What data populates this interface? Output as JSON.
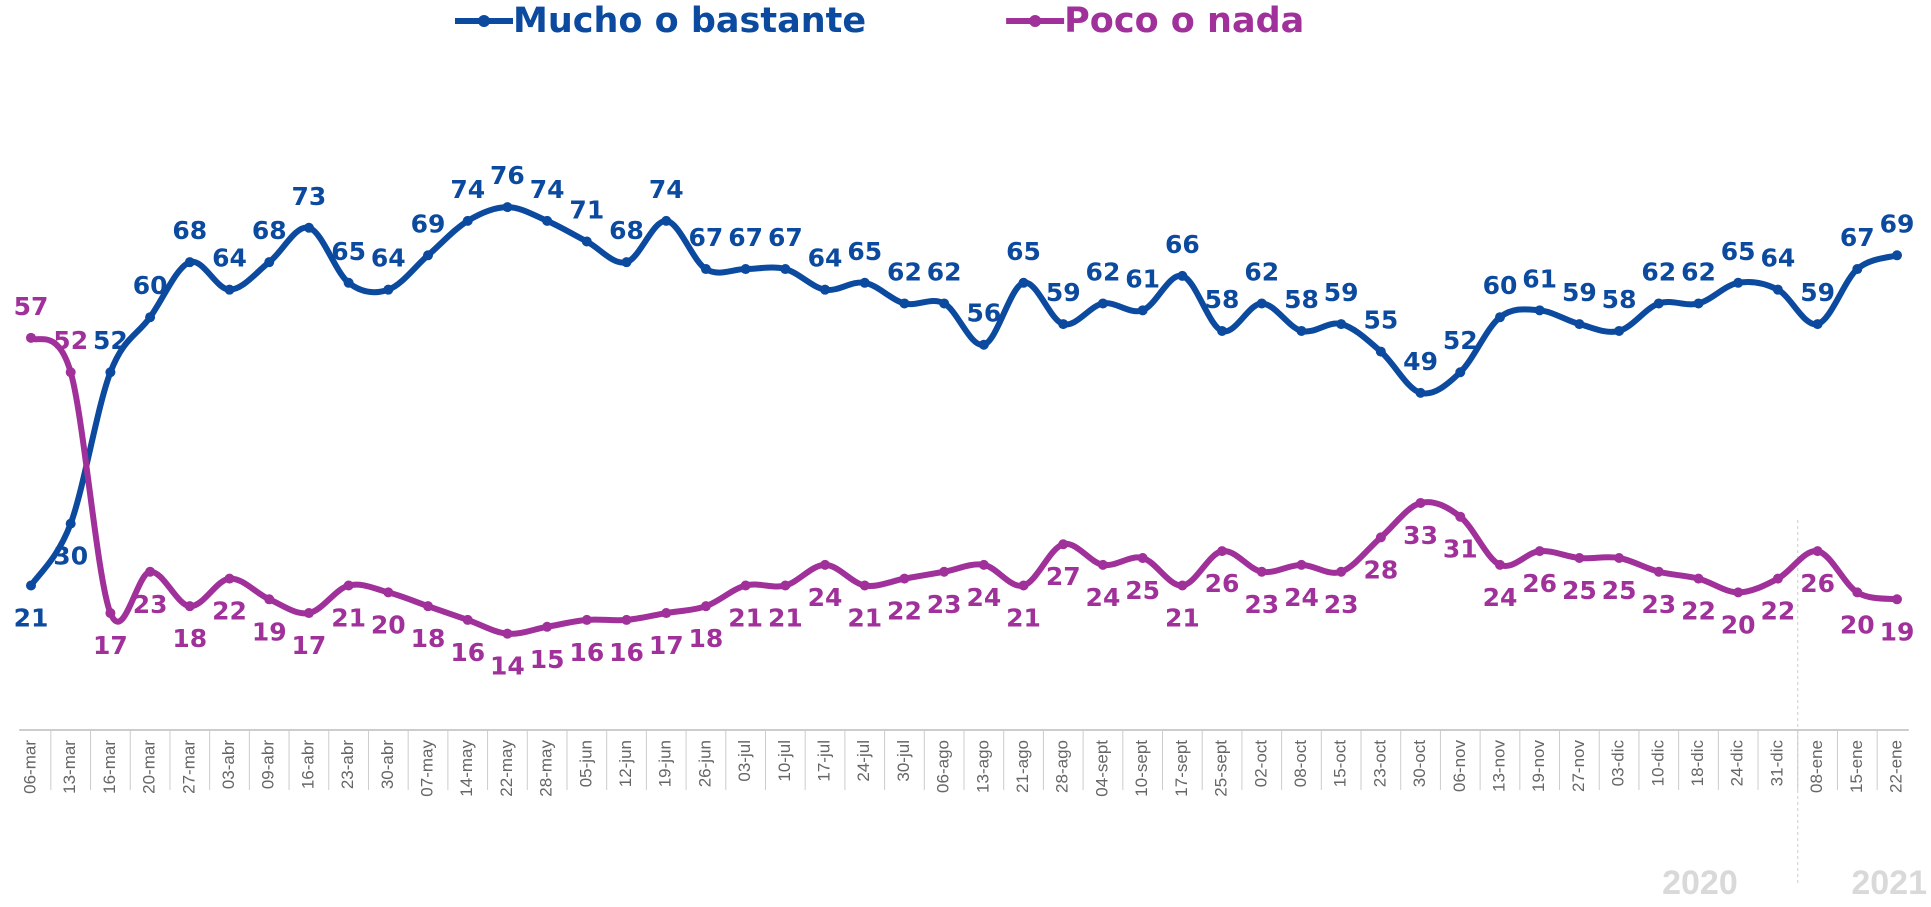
{
  "chart_data": {
    "type": "line",
    "categories": [
      "06-mar",
      "13-mar",
      "16-mar",
      "20-mar",
      "27-mar",
      "03-abr",
      "09-abr",
      "16-abr",
      "23-abr",
      "30-abr",
      "07-may",
      "14-may",
      "22-may",
      "28-may",
      "05-jun",
      "12-jun",
      "19-jun",
      "26-jun",
      "03-jul",
      "10-jul",
      "17-jul",
      "24-jul",
      "30-jul",
      "06-ago",
      "13-ago",
      "21-ago",
      "28-ago",
      "04-sept",
      "10-sept",
      "17-sept",
      "25-sept",
      "02-oct",
      "08-oct",
      "15-oct",
      "23-oct",
      "30-oct",
      "06-nov",
      "13-nov",
      "19-nov",
      "27-nov",
      "03-dic",
      "10-dic",
      "18-dic",
      "24-dic",
      "31-dic",
      "08-ene",
      "15-ene",
      "22-ene"
    ],
    "series": [
      {
        "name": "Mucho o bastante",
        "color": "#0b4a9e",
        "values": [
          21,
          30,
          52,
          60,
          68,
          64,
          68,
          73,
          65,
          64,
          69,
          74,
          76,
          74,
          71,
          68,
          74,
          67,
          67,
          67,
          64,
          65,
          62,
          62,
          56,
          65,
          59,
          62,
          61,
          66,
          58,
          62,
          58,
          59,
          55,
          49,
          52,
          60,
          61,
          59,
          58,
          62,
          62,
          65,
          64,
          59,
          67,
          69
        ]
      },
      {
        "name": "Poco o nada",
        "color": "#a0309a",
        "values": [
          57,
          52,
          17,
          23,
          18,
          22,
          19,
          17,
          21,
          20,
          18,
          16,
          14,
          15,
          16,
          16,
          17,
          18,
          21,
          21,
          24,
          21,
          22,
          23,
          24,
          21,
          27,
          24,
          25,
          21,
          26,
          23,
          24,
          23,
          28,
          33,
          31,
          24,
          26,
          25,
          25,
          23,
          22,
          20,
          22,
          26,
          20,
          19
        ]
      }
    ],
    "ylim": [
      0,
      100
    ],
    "year_labels": [
      "2020",
      "2021"
    ],
    "legend": "top"
  }
}
